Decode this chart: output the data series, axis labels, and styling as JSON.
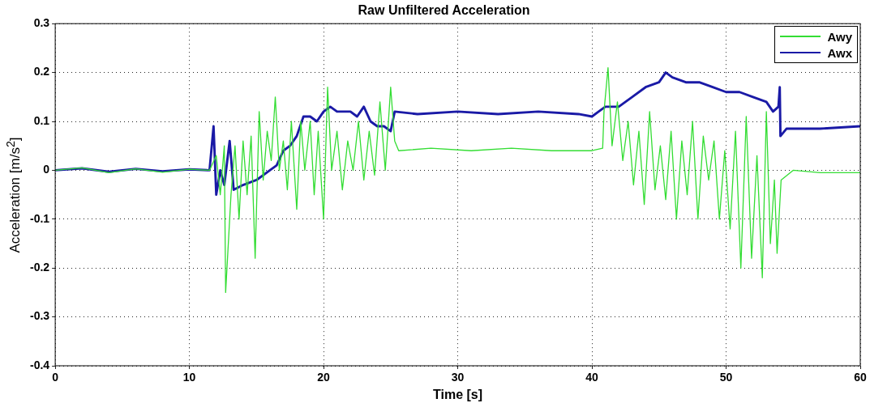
{
  "chart_data": {
    "type": "line",
    "title": "Raw Unfiltered Acceleration",
    "xlabel": "Time [s]",
    "ylabel": "Acceleration [m/s$^{2}$]",
    "xlim": [
      0,
      60
    ],
    "xticks": [
      0,
      10,
      20,
      30,
      40,
      50,
      60
    ],
    "ylim": [
      -0.4,
      0.3
    ],
    "yticks": [
      -0.4,
      -0.3,
      -0.2,
      -0.1,
      0,
      0.1,
      0.2,
      0.3
    ],
    "grid": true,
    "legend": "top right",
    "line_style": "solid",
    "marker": "none",
    "series": [
      {
        "name": "Awy",
        "color": "#33dd33",
        "x": [
          0,
          2,
          4,
          6,
          8,
          10,
          11.5,
          12,
          12.3,
          12.6,
          12.7,
          13.1,
          13.4,
          13.7,
          14,
          14.3,
          14.6,
          14.9,
          15.2,
          15.5,
          15.8,
          16.1,
          16.4,
          16.7,
          17,
          17.3,
          17.6,
          18,
          18.3,
          18.6,
          19,
          19.3,
          19.6,
          20,
          20.3,
          20.6,
          21,
          21.4,
          21.8,
          22.2,
          22.6,
          23,
          23.4,
          23.8,
          24.2,
          24.6,
          25,
          25.3,
          25.6,
          28,
          31,
          34,
          37,
          40,
          40.8,
          40.9,
          41.2,
          41.5,
          41.9,
          42.3,
          42.7,
          43.1,
          43.5,
          43.9,
          44.3,
          44.7,
          45.1,
          45.5,
          45.9,
          46.3,
          46.7,
          47.1,
          47.5,
          47.9,
          48.3,
          48.7,
          49.1,
          49.5,
          49.9,
          50.3,
          50.7,
          51.1,
          51.5,
          51.9,
          52.3,
          52.7,
          53,
          53.3,
          53.6,
          53.8,
          54.1,
          55,
          57,
          60
        ],
        "values": [
          0,
          0.005,
          -0.005,
          0.003,
          -0.004,
          0.002,
          0,
          0.03,
          -0.05,
          0.05,
          -0.25,
          -0.05,
          0.05,
          -0.1,
          0.06,
          -0.05,
          0.07,
          -0.18,
          0.12,
          -0.02,
          0.08,
          0.02,
          0.15,
          0,
          0.06,
          -0.04,
          0.1,
          -0.08,
          0.1,
          0,
          0.1,
          -0.05,
          0.08,
          -0.1,
          0.17,
          0,
          0.08,
          -0.04,
          0.06,
          0,
          0.1,
          -0.02,
          0.08,
          -0.01,
          0.14,
          0,
          0.17,
          0.06,
          0.04,
          0.045,
          0.04,
          0.045,
          0.04,
          0.04,
          0.045,
          0.12,
          0.21,
          0.05,
          0.14,
          0.02,
          0.1,
          -0.03,
          0.08,
          -0.07,
          0.12,
          -0.04,
          0.05,
          -0.06,
          0.08,
          -0.1,
          0.06,
          -0.05,
          0.1,
          -0.1,
          0.07,
          -0.02,
          0.06,
          -0.1,
          0.04,
          -0.12,
          0.08,
          -0.2,
          0.11,
          -0.18,
          0.03,
          -0.22,
          0.12,
          -0.15,
          -0.02,
          -0.17,
          -0.02,
          0,
          -0.005,
          -0.005
        ]
      },
      {
        "name": "Awx",
        "color": "#1a1aa6",
        "x": [
          0,
          2,
          4,
          6,
          8,
          10,
          11.5,
          11.8,
          12,
          12.3,
          12.6,
          13,
          13.3,
          14,
          15,
          16,
          16.5,
          17,
          17.5,
          18,
          18.5,
          19,
          19.5,
          20,
          20.5,
          21,
          22,
          22.5,
          23,
          23.5,
          24,
          24.5,
          25,
          25.3,
          27,
          30,
          33,
          36,
          39,
          40,
          40.5,
          41,
          42,
          43,
          44,
          45,
          45.5,
          46,
          47,
          48,
          49,
          50,
          51,
          52,
          53,
          53.5,
          53.9,
          54,
          54.05,
          54.5,
          57,
          60
        ],
        "values": [
          0,
          0.004,
          -0.003,
          0.003,
          -0.002,
          0.002,
          0,
          0.09,
          -0.05,
          0,
          -0.03,
          0.06,
          -0.04,
          -0.03,
          -0.02,
          0,
          0.01,
          0.04,
          0.05,
          0.07,
          0.11,
          0.11,
          0.1,
          0.12,
          0.13,
          0.12,
          0.12,
          0.11,
          0.13,
          0.1,
          0.09,
          0.09,
          0.08,
          0.12,
          0.115,
          0.12,
          0.115,
          0.12,
          0.115,
          0.11,
          0.12,
          0.13,
          0.13,
          0.15,
          0.17,
          0.18,
          0.2,
          0.19,
          0.18,
          0.18,
          0.17,
          0.16,
          0.16,
          0.15,
          0.14,
          0.12,
          0.13,
          0.17,
          0.07,
          0.085,
          0.085,
          0.09
        ]
      }
    ]
  }
}
